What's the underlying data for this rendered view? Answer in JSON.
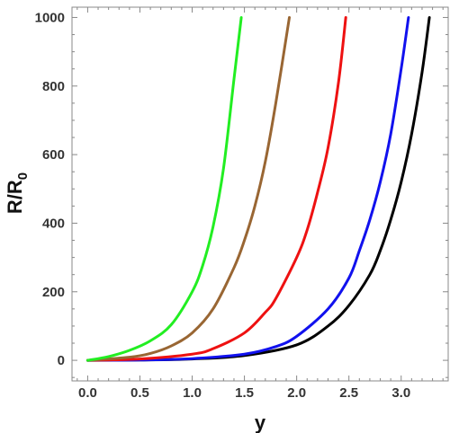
{
  "chart_data": {
    "type": "line",
    "xlabel": "y",
    "ylabel_main": "R/R",
    "ylabel_sub": "0",
    "xlim": [
      -0.15,
      3.45
    ],
    "ylim": [
      -60,
      1030
    ],
    "x_ticks": [
      0.0,
      0.5,
      1.0,
      1.5,
      2.0,
      2.5,
      3.0
    ],
    "x_tick_labels": [
      "0.0",
      "0.5",
      "1.0",
      "1.5",
      "2.0",
      "2.5",
      "3.0"
    ],
    "y_ticks": [
      0,
      200,
      400,
      600,
      800,
      1000
    ],
    "y_tick_labels": [
      "0",
      "200",
      "400",
      "600",
      "800",
      "1000"
    ],
    "grid": false,
    "series": [
      {
        "color": "#22ee22",
        "x": [
          0.0,
          0.2,
          0.4,
          0.6,
          0.8,
          1.0,
          1.1,
          1.2,
          1.3,
          1.4,
          1.47
        ],
        "y": [
          0,
          11,
          29,
          57,
          104,
          200,
          276,
          390,
          560,
          820,
          1000
        ]
      },
      {
        "color": "#996633",
        "x": [
          0.0,
          0.4,
          0.6,
          0.8,
          1.0,
          1.2,
          1.4,
          1.5,
          1.6,
          1.7,
          1.8,
          1.93
        ],
        "y": [
          0,
          9,
          20,
          42,
          80,
          150,
          270,
          350,
          450,
          580,
          750,
          1000
        ]
      },
      {
        "color": "#ee1111",
        "x": [
          0.0,
          0.5,
          1.0,
          1.2,
          1.5,
          1.7,
          1.8,
          2.0,
          2.1,
          2.2,
          2.3,
          2.4,
          2.47
        ],
        "y": [
          0,
          4,
          18,
          34,
          80,
          140,
          180,
          300,
          380,
          490,
          620,
          810,
          1000
        ]
      },
      {
        "color": "#1111ee",
        "x": [
          0.0,
          0.5,
          1.0,
          1.5,
          1.8,
          2.0,
          2.3,
          2.5,
          2.6,
          2.7,
          2.8,
          2.9,
          3.0,
          3.07
        ],
        "y": [
          0,
          1,
          5,
          18,
          40,
          70,
          150,
          240,
          320,
          410,
          520,
          660,
          850,
          1000
        ]
      },
      {
        "color": "#000000",
        "x": [
          0.0,
          0.5,
          1.0,
          1.5,
          2.0,
          2.3,
          2.5,
          2.7,
          2.8,
          2.9,
          3.0,
          3.1,
          3.2,
          3.27
        ],
        "y": [
          0,
          1,
          4,
          14,
          45,
          100,
          160,
          250,
          320,
          410,
          520,
          660,
          840,
          1000
        ]
      }
    ]
  }
}
